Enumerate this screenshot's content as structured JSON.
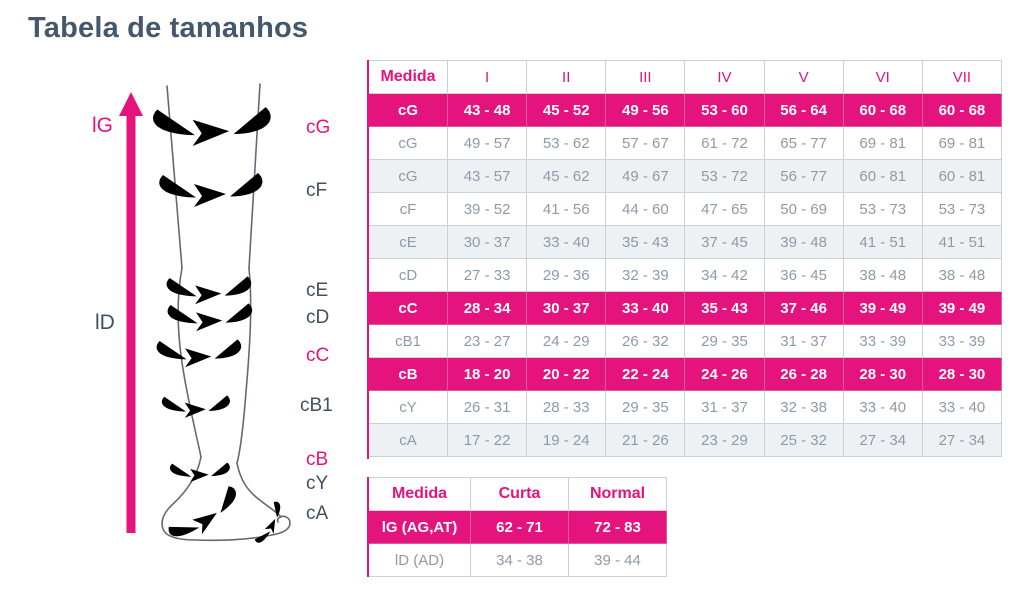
{
  "page": {
    "title": "Tabela de tamanhos"
  },
  "colors": {
    "accent_magenta": "#e5137d",
    "title_slate": "#44576b",
    "table_text_grey": "#8e9aa7",
    "row_shade": "#eef1f4",
    "band_grey": "#b8c2cb"
  },
  "diagram": {
    "length_labels": {
      "lg": "lG",
      "ld": "lD"
    },
    "girth_labels": {
      "cg": "cG",
      "cf": "cF",
      "ce": "cE",
      "cd": "cD",
      "cc": "cC",
      "cb1": "cB1",
      "cb": "cB",
      "cy": "cY",
      "ca": "cA"
    }
  },
  "size_table": {
    "header": [
      "Medida",
      "I",
      "II",
      "III",
      "IV",
      "V",
      "VI",
      "VII"
    ],
    "rows": [
      {
        "label": "cG",
        "highlight": true,
        "shade": false,
        "values": [
          "43 - 48",
          "45 - 52",
          "49 - 56",
          "53 - 60",
          "56 - 64",
          "60 - 68",
          "60 - 68"
        ]
      },
      {
        "label": "cG",
        "highlight": false,
        "shade": false,
        "values": [
          "49 - 57",
          "53 - 62",
          "57 - 67",
          "61 - 72",
          "65 - 77",
          "69 - 81",
          "69 - 81"
        ]
      },
      {
        "label": "cG",
        "highlight": false,
        "shade": true,
        "values": [
          "43 - 57",
          "45 - 62",
          "49 - 67",
          "53 - 72",
          "56 - 77",
          "60 - 81",
          "60 - 81"
        ]
      },
      {
        "label": "cF",
        "highlight": false,
        "shade": false,
        "values": [
          "39 - 52",
          "41 - 56",
          "44 - 60",
          "47 - 65",
          "50 - 69",
          "53 - 73",
          "53 - 73"
        ]
      },
      {
        "label": "cE",
        "highlight": false,
        "shade": true,
        "values": [
          "30 - 37",
          "33 - 40",
          "35 - 43",
          "37 - 45",
          "39 - 48",
          "41 - 51",
          "41 - 51"
        ]
      },
      {
        "label": "cD",
        "highlight": false,
        "shade": false,
        "values": [
          "27 - 33",
          "29 - 36",
          "32 - 39",
          "34 - 42",
          "36 - 45",
          "38 - 48",
          "38 - 48"
        ]
      },
      {
        "label": "cC",
        "highlight": true,
        "shade": false,
        "values": [
          "28 - 34",
          "30 - 37",
          "33 - 40",
          "35 - 43",
          "37 - 46",
          "39 - 49",
          "39 - 49"
        ]
      },
      {
        "label": "cB1",
        "highlight": false,
        "shade": false,
        "values": [
          "23 - 27",
          "24 - 29",
          "26 - 32",
          "29 - 35",
          "31 - 37",
          "33 - 39",
          "33 - 39"
        ]
      },
      {
        "label": "cB",
        "highlight": true,
        "shade": false,
        "values": [
          "18 - 20",
          "20 - 22",
          "22 - 24",
          "24 - 26",
          "26 - 28",
          "28 - 30",
          "28 - 30"
        ]
      },
      {
        "label": "cY",
        "highlight": false,
        "shade": false,
        "values": [
          "26 - 31",
          "28 - 33",
          "29 - 35",
          "31 - 37",
          "32 - 38",
          "33 - 40",
          "33 - 40"
        ]
      },
      {
        "label": "cA",
        "highlight": false,
        "shade": true,
        "values": [
          "17 - 22",
          "19 - 24",
          "21 - 26",
          "23 - 29",
          "25 - 32",
          "27 - 34",
          "27 - 34"
        ]
      }
    ]
  },
  "length_table": {
    "header": [
      "Medida",
      "Curta",
      "Normal"
    ],
    "rows": [
      {
        "label": "lG (AG,AT)",
        "highlight": true,
        "shade": false,
        "values": [
          "62 - 71",
          "72 - 83"
        ]
      },
      {
        "label": "lD (AD)",
        "highlight": false,
        "shade": false,
        "values": [
          "34 - 38",
          "39 - 44"
        ]
      }
    ]
  }
}
